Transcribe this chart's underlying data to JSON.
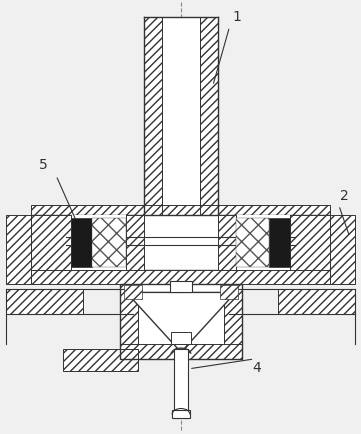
{
  "background_color": "#f0f0f0",
  "line_color": "#333333",
  "dark_fill": "#1a1a1a",
  "white_fill": "#ffffff",
  "label_fontsize": 10,
  "centerline_color": "#666666",
  "fig_width": 3.61,
  "fig_height": 4.34,
  "dpi": 100
}
